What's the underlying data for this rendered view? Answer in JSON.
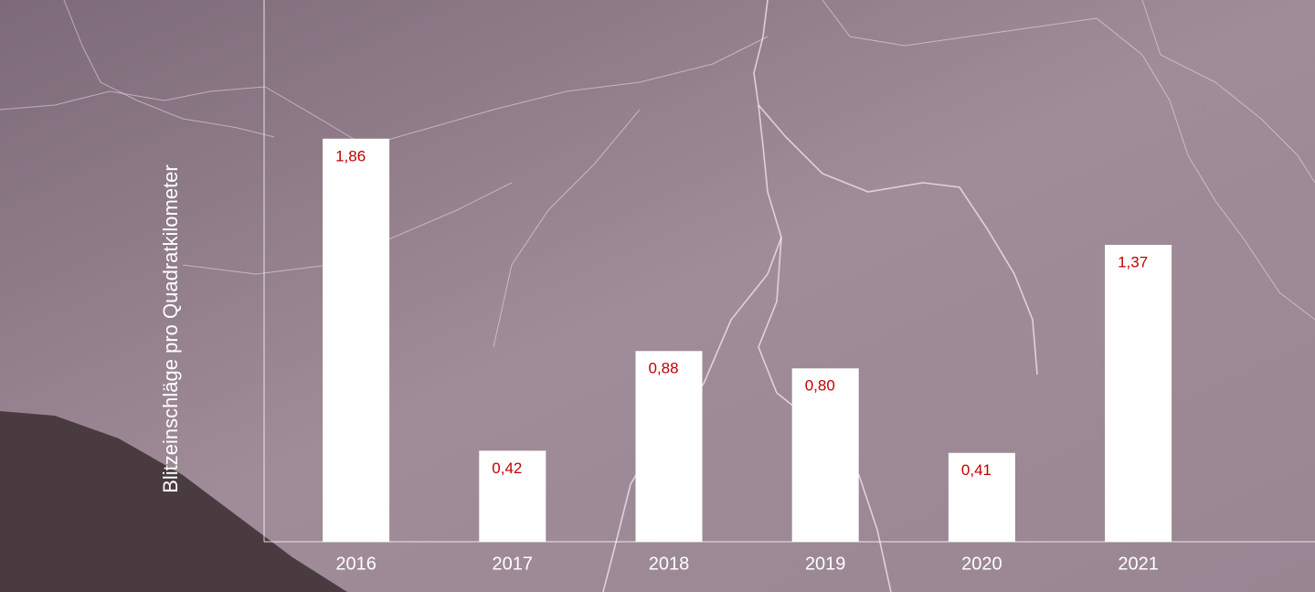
{
  "chart_data": {
    "type": "bar",
    "y_label": "Blitzeinschläge pro Quadratkilometer",
    "categories": [
      "2016",
      "2017",
      "2018",
      "2019",
      "2020",
      "2021"
    ],
    "values": [
      1.86,
      0.42,
      0.88,
      0.8,
      0.41,
      1.37
    ],
    "value_labels": [
      "1,86",
      "0,42",
      "0,88",
      "0,80",
      "0,41",
      "1,37"
    ],
    "color": "#ffffff",
    "label_color": "#c00000",
    "ylim": [
      0,
      2.5
    ]
  }
}
